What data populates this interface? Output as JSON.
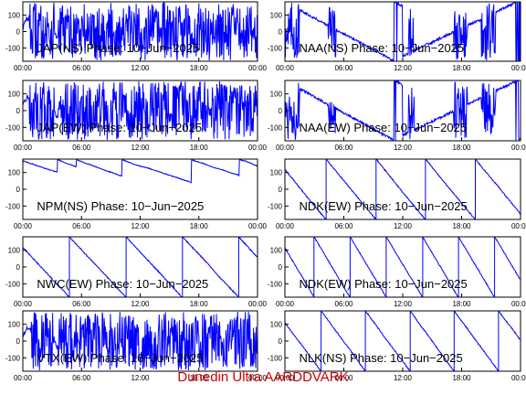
{
  "footer": "Dunedin Ultra AARDDVARK",
  "chart_data": [
    {
      "type": "line",
      "title": "JAP(NS) Phase: 10−Jun−2025",
      "pattern": "dense",
      "color": "#0000ff",
      "x_ticks": [
        "00:00",
        "06:00",
        "12:00",
        "18:00",
        "00:00"
      ],
      "xlim": [
        0,
        24
      ],
      "ylim": [
        -180,
        180
      ],
      "y_ticks": [
        100,
        0,
        -100
      ]
    },
    {
      "type": "line",
      "title": "NAA(NS) Phase: 10−Jun−2025",
      "pattern": "drift",
      "color": "#0000ff",
      "x_ticks": [
        "00:00",
        "06:00",
        "12:00",
        "18:00",
        "00:00"
      ],
      "xlim": [
        0,
        24
      ],
      "ylim": [
        -180,
        180
      ],
      "y_ticks": [
        100,
        0,
        -100
      ]
    },
    {
      "type": "line",
      "title": "JAP(EW) Phase: 10−Jun−2025",
      "pattern": "dense",
      "color": "#0000ff",
      "x_ticks": [
        "00:00",
        "06:00",
        "12:00",
        "18:00",
        "00:00"
      ],
      "xlim": [
        0,
        24
      ],
      "ylim": [
        -180,
        180
      ],
      "y_ticks": [
        100,
        0,
        -100
      ]
    },
    {
      "type": "line",
      "title": "NAA(EW) Phase: 10−Jun−2025",
      "pattern": "drift",
      "color": "#0000ff",
      "x_ticks": [
        "00:00",
        "06:00",
        "12:00",
        "18:00",
        "00:00"
      ],
      "xlim": [
        0,
        24
      ],
      "ylim": [
        -180,
        180
      ],
      "y_ticks": [
        100,
        0,
        -100
      ]
    },
    {
      "type": "line",
      "title": "NPM(NS) Phase: 10−Jun−2025",
      "pattern": "slow",
      "color": "#0000ff",
      "x_ticks": [
        "00:00",
        "06:00",
        "12:00",
        "18:00",
        "00:00"
      ],
      "xlim": [
        0,
        24
      ],
      "ylim": [
        -180,
        180
      ],
      "y_ticks": [
        100,
        0,
        -100
      ]
    },
    {
      "type": "line",
      "title": "NDK(EW) Phase: 10−Jun−2025",
      "pattern": "sawtooth",
      "color": "#0000ff",
      "x_ticks": [
        "00:00",
        "06:00",
        "12:00",
        "18:00",
        "00:00"
      ],
      "xlim": [
        0,
        24
      ],
      "ylim": [
        -180,
        180
      ],
      "y_ticks": [
        100,
        0,
        -100
      ]
    },
    {
      "type": "line",
      "title": "NWC(EW) Phase: 10−Jun−2025",
      "pattern": "sawtooth",
      "color": "#0000ff",
      "x_ticks": [
        "00:00",
        "06:00",
        "12:00",
        "18:00",
        "00:00"
      ],
      "xlim": [
        0,
        24
      ],
      "ylim": [
        -180,
        180
      ],
      "y_ticks": [
        100,
        0,
        -100
      ]
    },
    {
      "type": "line",
      "title": "NDK(EW) Phase: 10−Jun−2025",
      "pattern": "sawtooth",
      "color": "#0000ff",
      "x_ticks": [
        "00:00",
        "06:00",
        "12:00",
        "18:00",
        "00:00"
      ],
      "xlim": [
        0,
        24
      ],
      "ylim": [
        -180,
        180
      ],
      "y_ticks": [
        100,
        0,
        -100
      ]
    },
    {
      "type": "line",
      "title": "VTX(EW) Phase: 10−Jun−2025",
      "pattern": "dense",
      "color": "#0000ff",
      "x_ticks": [
        "00:00",
        "06:00",
        "12:00",
        "18:00",
        "00:00"
      ],
      "xlim": [
        0,
        24
      ],
      "ylim": [
        -180,
        180
      ],
      "y_ticks": [
        100,
        0,
        -100
      ]
    },
    {
      "type": "line",
      "title": "NLK(NS) Phase: 10−Jun−2025",
      "pattern": "sawtooth",
      "color": "#0000ff",
      "x_ticks": [
        "00:00",
        "06:00",
        "12:00",
        "18:00",
        "00:00"
      ],
      "xlim": [
        0,
        24
      ],
      "ylim": [
        -180,
        180
      ],
      "y_ticks": [
        100,
        0,
        -100
      ]
    }
  ]
}
